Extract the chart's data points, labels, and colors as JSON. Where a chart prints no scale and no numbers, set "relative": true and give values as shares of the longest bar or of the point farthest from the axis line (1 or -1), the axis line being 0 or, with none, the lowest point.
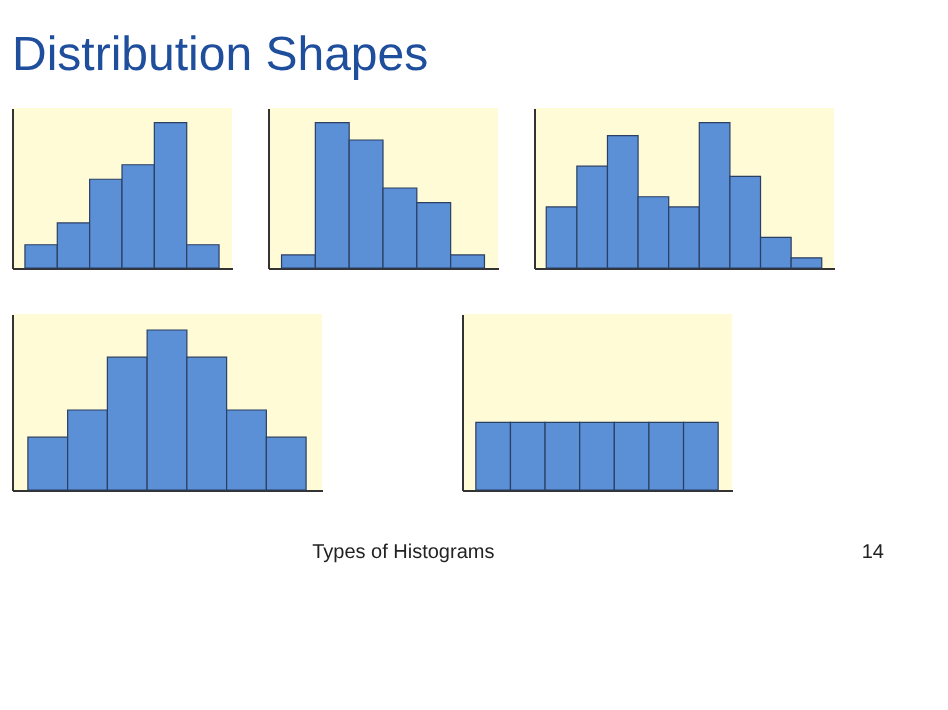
{
  "chart_data": [
    {
      "type": "bar",
      "title": "Distribution Shapes",
      "relative": true,
      "categories": [
        null,
        null,
        null,
        null,
        null,
        null
      ],
      "values": [
        0.16,
        0.31,
        0.61,
        0.71,
        1,
        0.16
      ],
      "color": "#5b8fd6"
    },
    {
      "type": "bar",
      "relative": true,
      "categories": [
        null,
        null,
        null,
        null,
        null,
        null
      ],
      "values": [
        0.09,
        1,
        0.88,
        0.55,
        0.45,
        0.09
      ],
      "color": "#5b8fd6"
    },
    {
      "type": "bar",
      "relative": true,
      "categories": [
        null,
        null,
        null,
        null,
        null,
        null,
        null,
        null,
        null
      ],
      "values": [
        0.42,
        0.7,
        0.91,
        0.49,
        0.42,
        1,
        0.63,
        0.21,
        0.07
      ],
      "color": "#5b8fd6"
    },
    {
      "type": "bar",
      "relative": true,
      "categories": [
        null,
        null,
        null,
        null,
        null,
        null,
        null
      ],
      "values": [
        0.33,
        0.5,
        0.83,
        1,
        0.83,
        0.5,
        0.33
      ],
      "color": "#5b8fd6"
    },
    {
      "type": "bar",
      "relative": true,
      "categories": [
        null,
        null,
        null,
        null,
        null,
        null,
        null
      ],
      "values": [
        1,
        1,
        1,
        1,
        1,
        1,
        1
      ],
      "color": "#5b8fd6",
      "annotations": [
        "Types of Histograms",
        "14"
      ]
    }
  ]
}
